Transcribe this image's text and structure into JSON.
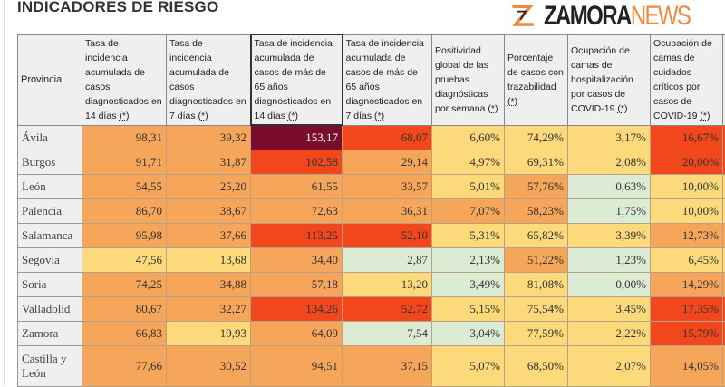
{
  "title": "INDICADORES DE RIESGO",
  "headers": [
    {
      "text": "Provincia",
      "note": ""
    },
    {
      "text": "Tasa de incidencia acumulada de casos diagnosticados en 14 días ",
      "note": "(*)"
    },
    {
      "text": "Tasa de incidencia acumulada de casos diagnosticados en 7 días ",
      "note": "(*)"
    },
    {
      "text": "Tasa de incidencia acumulada de casos de más de 65 años diagnosticados en 14 días ",
      "note": "(*)"
    },
    {
      "text": "Tasa de incidencia acumulada de casos de más de 65 años diagnosticados en 7 días ",
      "note": "(*)"
    },
    {
      "text": "Positividad global de las pruebas diagnósticas por semana ",
      "note": "(*)"
    },
    {
      "text": "Porcentaje de casos con trazabilidad ",
      "note": "(*)"
    },
    {
      "text": "Ocupación de camas de hospitalización por casos de COVID-19 ",
      "note": "(*)"
    },
    {
      "text": "Ocupación de camas de cuidados críticos por casos de COVID-19 ",
      "note": "(*)"
    }
  ],
  "risk_colors": {
    "very_high": "#7b0d2c",
    "high": "#f2461c",
    "medium": "#f6a65a",
    "low": "#fcd97a",
    "new_normal": "#dcebd4"
  },
  "rows": [
    {
      "name": "Ávila",
      "values": [
        "98,31",
        "39,32",
        "153,17",
        "68,07",
        "6,60%",
        "74,29%",
        "3,17%",
        "16,67%"
      ],
      "levels": [
        "O",
        "O",
        "M",
        "R",
        "Y",
        "Y",
        "Y",
        "R"
      ]
    },
    {
      "name": "Burgos",
      "values": [
        "91,71",
        "31,87",
        "102,58",
        "29,14",
        "4,97%",
        "69,31%",
        "2,08%",
        "20,00%"
      ],
      "levels": [
        "O",
        "O",
        "R",
        "O",
        "Y",
        "Y",
        "Y",
        "R"
      ]
    },
    {
      "name": "León",
      "values": [
        "54,55",
        "25,20",
        "61,55",
        "33,57",
        "5,01%",
        "57,76%",
        "0,63%",
        "10,00%"
      ],
      "levels": [
        "O",
        "O",
        "O",
        "O",
        "Y",
        "O",
        "G",
        "Y"
      ]
    },
    {
      "name": "Palencia",
      "values": [
        "86,70",
        "38,67",
        "72,63",
        "36,31",
        "7,07%",
        "58,23%",
        "1,75%",
        "10,00%"
      ],
      "levels": [
        "O",
        "O",
        "O",
        "O",
        "O",
        "O",
        "G",
        "Y"
      ]
    },
    {
      "name": "Salamanca",
      "values": [
        "95,98",
        "37,66",
        "113,25",
        "52,10",
        "5,31%",
        "65,82%",
        "3,39%",
        "12,73%"
      ],
      "levels": [
        "O",
        "O",
        "R",
        "R",
        "Y",
        "Y",
        "Y",
        "O"
      ]
    },
    {
      "name": "Segovia",
      "values": [
        "47,56",
        "13,68",
        "34,40",
        "2,87",
        "2,13%",
        "51,22%",
        "1,23%",
        "6,45%"
      ],
      "levels": [
        "Y",
        "Y",
        "O",
        "G",
        "G",
        "O",
        "G",
        "Y"
      ]
    },
    {
      "name": "Soria",
      "values": [
        "74,25",
        "34,88",
        "57,18",
        "13,20",
        "3,49%",
        "81,08%",
        "0,00%",
        "14,29%"
      ],
      "levels": [
        "O",
        "O",
        "O",
        "Y",
        "G",
        "Y",
        "G",
        "O"
      ]
    },
    {
      "name": "Valladolid",
      "values": [
        "80,67",
        "32,27",
        "134,26",
        "52,72",
        "5,15%",
        "75,54%",
        "3,45%",
        "17,35%"
      ],
      "levels": [
        "O",
        "O",
        "R",
        "R",
        "Y",
        "Y",
        "Y",
        "R"
      ]
    },
    {
      "name": "Zamora",
      "values": [
        "66,83",
        "19,93",
        "64,09",
        "7,54",
        "3,04%",
        "77,59%",
        "2,22%",
        "15,79%"
      ],
      "levels": [
        "O",
        "Y",
        "O",
        "G",
        "G",
        "Y",
        "Y",
        "R"
      ]
    },
    {
      "name": "Castilla y León",
      "values": [
        "77,66",
        "30,52",
        "94,51",
        "37,15",
        "5,07%",
        "68,50%",
        "2,07%",
        "14,05%"
      ],
      "levels": [
        "O",
        "O",
        "O",
        "O",
        "Y",
        "Y",
        "Y",
        "O"
      ]
    }
  ],
  "watermark": {
    "part1": "ZAMORA",
    "part2": "NEWS"
  }
}
